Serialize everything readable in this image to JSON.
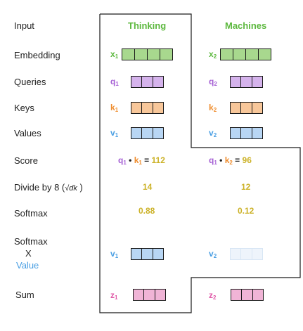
{
  "rows": {
    "input": "Input",
    "embedding": "Embedding",
    "queries": "Queries",
    "keys": "Keys",
    "values": "Values",
    "score": "Score",
    "divide": "Divide by 8 (",
    "divide_sqrt": "√dk",
    "divide_close": ")",
    "softmax": "Softmax",
    "softmax2": "Softmax",
    "x_label": "X",
    "value_label": "Value",
    "sum": "Sum"
  },
  "columns": [
    {
      "word": "Thinking",
      "embedding": "x",
      "embedding_sub": "1",
      "query": "q",
      "query_sub": "1",
      "key": "k",
      "key_sub": "1",
      "value": "v",
      "value_sub": "1",
      "score_q": "q",
      "score_q_sub": "1",
      "score_k": "k",
      "score_k_sub": "1",
      "score_eq": "=",
      "score": "112",
      "divided": "14",
      "softmax": "0.88",
      "weighted": "v",
      "weighted_sub": "1",
      "sum": "z",
      "sum_sub": "1"
    },
    {
      "word": "Machines",
      "embedding": "x",
      "embedding_sub": "2",
      "query": "q",
      "query_sub": "2",
      "key": "k",
      "key_sub": "2",
      "value": "v",
      "value_sub": "2",
      "score_q": "q",
      "score_q_sub": "1",
      "score_k": "k",
      "score_k_sub": "2",
      "score_eq": "=",
      "score": "96",
      "divided": "12",
      "softmax": "0.12",
      "weighted": "v",
      "weighted_sub": "2",
      "sum": "z",
      "sum_sub": "2"
    }
  ],
  "colors": {
    "embedding": "#a8d88e",
    "embedding_text": "#5cb83e",
    "query": "#d5b3ec",
    "query_text": "#a560d4",
    "key": "#f8c79a",
    "key_text": "#ef8d2e",
    "value": "#b8d6f4",
    "value_text": "#4a9fe3",
    "value_faded": "#eef4fb",
    "sum": "#f0b4d6",
    "sum_text": "#e05ba8",
    "number": "#ccb228",
    "word": "#5cb83e"
  }
}
